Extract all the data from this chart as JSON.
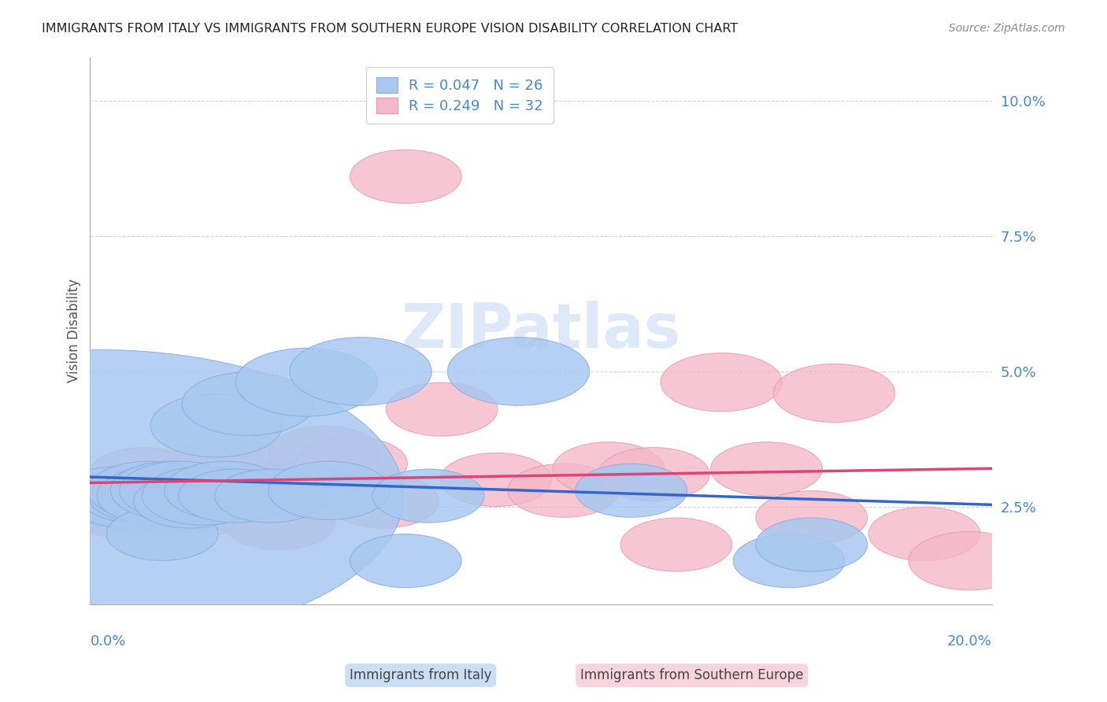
{
  "title": "IMMIGRANTS FROM ITALY VS IMMIGRANTS FROM SOUTHERN EUROPE VISION DISABILITY CORRELATION CHART",
  "source": "Source: ZipAtlas.com",
  "ylabel": "Vision Disability",
  "ytick_labels": [
    "2.5%",
    "5.0%",
    "7.5%",
    "10.0%"
  ],
  "ytick_values": [
    0.025,
    0.05,
    0.075,
    0.1
  ],
  "xlim": [
    0.0,
    0.2
  ],
  "ylim": [
    0.007,
    0.108
  ],
  "legend_italy_R": "R = 0.047",
  "legend_italy_N": "N = 26",
  "legend_south_R": "R = 0.249",
  "legend_south_N": "N = 32",
  "italy_color": "#a8c8f0",
  "southern_color": "#f4b8c8",
  "italy_edge_color": "#8aaede",
  "southern_edge_color": "#e898b0",
  "italy_line_color": "#3366cc",
  "southern_line_color": "#dd4477",
  "axis_color": "#4488cc",
  "grid_color": "#cccccc",
  "watermark_text": "ZIPatlas",
  "watermark_color": "#dde8f8",
  "italy_x": [
    0.002,
    0.006,
    0.008,
    0.01,
    0.012,
    0.013,
    0.015,
    0.016,
    0.018,
    0.02,
    0.022,
    0.025,
    0.028,
    0.03,
    0.032,
    0.035,
    0.04,
    0.048,
    0.053,
    0.06,
    0.07,
    0.075,
    0.095,
    0.12,
    0.155,
    0.16
  ],
  "italy_y": [
    0.027,
    0.027,
    0.026,
    0.027,
    0.027,
    0.028,
    0.027,
    0.02,
    0.028,
    0.028,
    0.026,
    0.027,
    0.04,
    0.028,
    0.027,
    0.044,
    0.027,
    0.048,
    0.028,
    0.05,
    0.015,
    0.027,
    0.05,
    0.028,
    0.015,
    0.018
  ],
  "italy_size": [
    300,
    60,
    55,
    55,
    55,
    60,
    60,
    55,
    60,
    60,
    55,
    60,
    65,
    60,
    55,
    65,
    55,
    70,
    60,
    70,
    55,
    55,
    70,
    55,
    55,
    55
  ],
  "southern_x": [
    0.004,
    0.006,
    0.008,
    0.01,
    0.012,
    0.014,
    0.016,
    0.018,
    0.02,
    0.022,
    0.025,
    0.028,
    0.032,
    0.038,
    0.042,
    0.048,
    0.052,
    0.058,
    0.065,
    0.07,
    0.078,
    0.09,
    0.105,
    0.115,
    0.125,
    0.13,
    0.14,
    0.15,
    0.16,
    0.165,
    0.185,
    0.195
  ],
  "southern_y": [
    0.027,
    0.025,
    0.024,
    0.025,
    0.031,
    0.023,
    0.025,
    0.026,
    0.027,
    0.024,
    0.026,
    0.032,
    0.032,
    0.028,
    0.022,
    0.028,
    0.035,
    0.033,
    0.026,
    0.086,
    0.043,
    0.03,
    0.028,
    0.032,
    0.031,
    0.018,
    0.048,
    0.032,
    0.023,
    0.046,
    0.02,
    0.015
  ],
  "southern_size": [
    60,
    55,
    55,
    55,
    55,
    55,
    55,
    55,
    55,
    55,
    60,
    55,
    60,
    55,
    55,
    55,
    55,
    55,
    55,
    55,
    55,
    55,
    55,
    55,
    55,
    55,
    60,
    55,
    55,
    60,
    55,
    60
  ]
}
